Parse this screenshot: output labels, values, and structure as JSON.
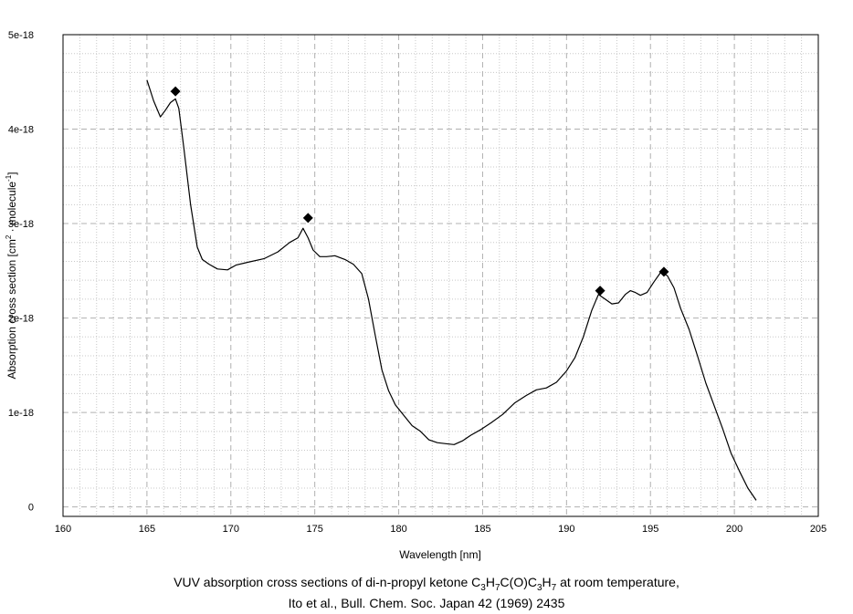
{
  "chart_data": {
    "type": "line",
    "xlabel": "Wavelength [nm]",
    "ylabel": {
      "base": "Absorption cross section [cm",
      "sup1": "2",
      "mid": " · molecule",
      "sup2": "-1",
      "end": "]"
    },
    "xlim": [
      160,
      205
    ],
    "ylim": [
      -1e-19,
      5e-18
    ],
    "x_ticks": [
      160,
      165,
      170,
      175,
      180,
      185,
      190,
      195,
      200,
      205
    ],
    "x_tick_labels": [
      "160",
      "165",
      "170",
      "175",
      "180",
      "185",
      "190",
      "195",
      "200",
      "205"
    ],
    "y_ticks": [
      0,
      1e-18,
      2e-18,
      3e-18,
      4e-18,
      5e-18
    ],
    "y_tick_labels": [
      "0",
      "1e-18",
      "2e-18",
      "3e-18",
      "4e-18",
      "5e-18"
    ],
    "grid": true,
    "legend": "none",
    "series": [
      {
        "style": "line",
        "color": "#000000",
        "x": [
          165.0,
          165.4,
          165.8,
          166.1,
          166.4,
          166.7,
          166.9,
          167.2,
          167.6,
          168.0,
          168.3,
          168.7,
          169.2,
          169.8,
          170.3,
          171.0,
          172.0,
          172.8,
          173.5,
          174.0,
          174.3,
          174.6,
          174.9,
          175.3,
          175.7,
          176.2,
          176.8,
          177.3,
          177.8,
          178.2,
          178.6,
          179.0,
          179.4,
          179.8,
          180.3,
          180.8,
          181.3,
          181.8,
          182.3,
          182.8,
          183.3,
          183.8,
          184.3,
          184.9,
          185.5,
          186.2,
          186.9,
          187.6,
          188.2,
          188.8,
          189.4,
          190.0,
          190.5,
          191.0,
          191.5,
          191.9,
          192.3,
          192.7,
          193.1,
          193.5,
          193.8,
          194.1,
          194.4,
          194.8,
          195.2,
          195.6,
          196.0,
          196.4,
          196.8,
          197.3,
          197.8,
          198.3,
          198.8,
          199.3,
          199.8,
          200.3,
          200.8,
          201.3
        ],
        "y": [
          4.52e-18,
          4.3e-18,
          4.13e-18,
          4.2e-18,
          4.28e-18,
          4.32e-18,
          4.22e-18,
          3.8e-18,
          3.2e-18,
          2.75e-18,
          2.62e-18,
          2.57e-18,
          2.52e-18,
          2.51e-18,
          2.56e-18,
          2.59e-18,
          2.63e-18,
          2.7e-18,
          2.8e-18,
          2.85e-18,
          2.95e-18,
          2.85e-18,
          2.72e-18,
          2.65e-18,
          2.65e-18,
          2.66e-18,
          2.62e-18,
          2.57e-18,
          2.47e-18,
          2.2e-18,
          1.82e-18,
          1.45e-18,
          1.23e-18,
          1.08e-18,
          9.7e-19,
          8.6e-19,
          8e-19,
          7.1e-19,
          6.8e-19,
          6.7e-19,
          6.6e-19,
          7e-19,
          7.6e-19,
          8.2e-19,
          8.9e-19,
          9.8e-19,
          1.1e-18,
          1.18e-18,
          1.24e-18,
          1.26e-18,
          1.32e-18,
          1.44e-18,
          1.58e-18,
          1.8e-18,
          2.08e-18,
          2.25e-18,
          2.2e-18,
          2.15e-18,
          2.16e-18,
          2.25e-18,
          2.29e-18,
          2.27e-18,
          2.24e-18,
          2.27e-18,
          2.38e-18,
          2.48e-18,
          2.45e-18,
          2.32e-18,
          2.1e-18,
          1.88e-18,
          1.6e-18,
          1.31e-18,
          1.07e-18,
          8.3e-19,
          5.7e-19,
          3.8e-19,
          2e-19,
          7e-20
        ]
      },
      {
        "style": "markers",
        "marker": "diamond",
        "color": "#000000",
        "x": [
          166.7,
          174.6,
          192.0,
          195.8
        ],
        "y": [
          4.4e-18,
          3.06e-18,
          2.29e-18,
          2.49e-18
        ]
      }
    ]
  },
  "caption": {
    "line1_prefix": "VUV absorption cross sections of di-n-propyl ketone C",
    "line1_s1": "3",
    "line1_h1": "H",
    "line1_s2": "7",
    "line1_mid": "C(O)C",
    "line1_s3": "3",
    "line1_h2": "H",
    "line1_s4": "7",
    "line1_suffix": " at room temperature,",
    "line2": "Ito et al., Bull. Chem. Soc. Japan 42 (1969) 2435"
  }
}
